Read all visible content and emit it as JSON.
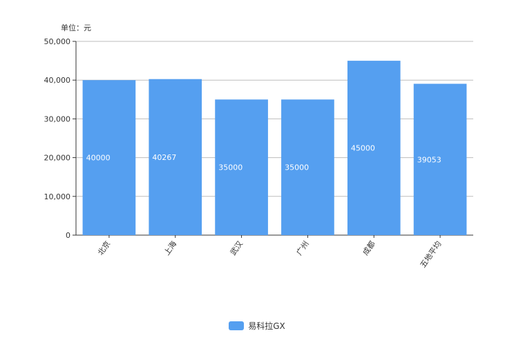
{
  "unit_label": "单位：元",
  "legend": {
    "series_name": "易科拉GX"
  },
  "colors": {
    "bar": "#559ff0",
    "axis": "#333333",
    "grid": "#d9d9d9",
    "label": "#ffffff",
    "text": "#333333"
  },
  "chart_data": {
    "type": "bar",
    "categories": [
      "北京",
      "上海",
      "武汉",
      "广州",
      "成都",
      "五地平均"
    ],
    "series": [
      {
        "name": "易科拉GX",
        "values": [
          40000,
          40267,
          35000,
          35000,
          45000,
          39053
        ]
      }
    ],
    "data_labels": [
      "40000",
      "40267",
      "35000",
      "35000",
      "45000",
      "39053"
    ],
    "ylim": [
      0,
      50000
    ],
    "yticks": [
      0,
      10000,
      20000,
      30000,
      40000,
      50000
    ],
    "ytick_labels": [
      "0",
      "10,000",
      "20,000",
      "30,000",
      "40,000",
      "50,000"
    ],
    "grid": true,
    "legend_position": "bottom-center"
  }
}
